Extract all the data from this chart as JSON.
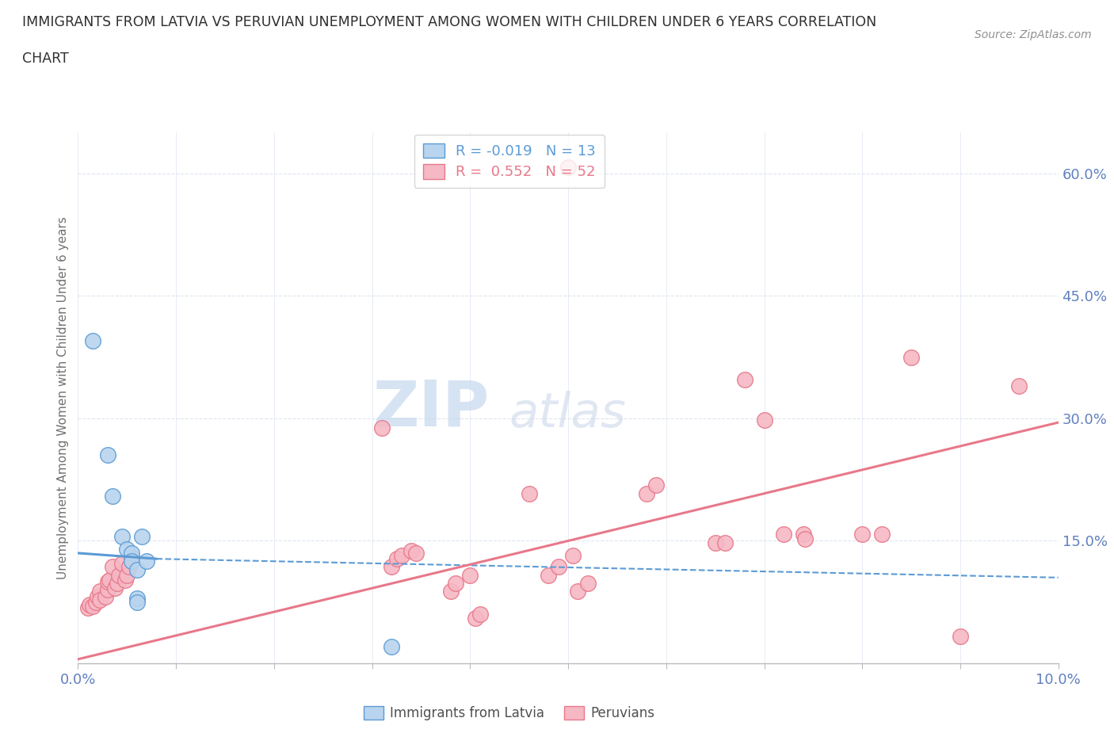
{
  "title_line1": "IMMIGRANTS FROM LATVIA VS PERUVIAN UNEMPLOYMENT AMONG WOMEN WITH CHILDREN UNDER 6 YEARS CORRELATION",
  "title_line2": "CHART",
  "source": "Source: ZipAtlas.com",
  "ylabel": "Unemployment Among Women with Children Under 6 years",
  "xlim": [
    0.0,
    0.1
  ],
  "ylim": [
    0.0,
    0.65
  ],
  "yticks_right": [
    0.0,
    0.15,
    0.3,
    0.45,
    0.6
  ],
  "yticklabels_right": [
    "",
    "15.0%",
    "30.0%",
    "45.0%",
    "60.0%"
  ],
  "legend_r_latvia": "R = -0.019",
  "legend_n_latvia": "N = 13",
  "legend_r_peru": "R =  0.552",
  "legend_n_peru": "N = 52",
  "watermark_zip": "ZIP",
  "watermark_atlas": "atlas",
  "background_color": "#ffffff",
  "grid_color": "#dde5f0",
  "blue_color": "#5b9bd5",
  "pink_color": "#e8788a",
  "blue_fill": "#b8d4ee",
  "pink_fill": "#f5b8c4",
  "tick_color": "#6080c0",
  "source_color": "#909090",
  "latvia_points": [
    [
      0.0015,
      0.395
    ],
    [
      0.003,
      0.255
    ],
    [
      0.0035,
      0.205
    ],
    [
      0.0045,
      0.155
    ],
    [
      0.005,
      0.14
    ],
    [
      0.0055,
      0.135
    ],
    [
      0.0055,
      0.125
    ],
    [
      0.006,
      0.115
    ],
    [
      0.006,
      0.08
    ],
    [
      0.006,
      0.075
    ],
    [
      0.0065,
      0.155
    ],
    [
      0.007,
      0.125
    ],
    [
      0.032,
      0.02
    ]
  ],
  "peruvian_points": [
    [
      0.001,
      0.068
    ],
    [
      0.0012,
      0.072
    ],
    [
      0.0015,
      0.07
    ],
    [
      0.0018,
      0.075
    ],
    [
      0.002,
      0.082
    ],
    [
      0.0022,
      0.088
    ],
    [
      0.0022,
      0.078
    ],
    [
      0.0028,
      0.082
    ],
    [
      0.003,
      0.09
    ],
    [
      0.003,
      0.1
    ],
    [
      0.0032,
      0.102
    ],
    [
      0.0035,
      0.118
    ],
    [
      0.0038,
      0.092
    ],
    [
      0.004,
      0.098
    ],
    [
      0.0042,
      0.108
    ],
    [
      0.0045,
      0.122
    ],
    [
      0.0048,
      0.102
    ],
    [
      0.005,
      0.108
    ],
    [
      0.0052,
      0.118
    ],
    [
      0.0055,
      0.13
    ],
    [
      0.031,
      0.288
    ],
    [
      0.032,
      0.118
    ],
    [
      0.0325,
      0.128
    ],
    [
      0.033,
      0.132
    ],
    [
      0.034,
      0.138
    ],
    [
      0.0345,
      0.135
    ],
    [
      0.038,
      0.088
    ],
    [
      0.0385,
      0.098
    ],
    [
      0.04,
      0.108
    ],
    [
      0.0405,
      0.055
    ],
    [
      0.041,
      0.06
    ],
    [
      0.046,
      0.208
    ],
    [
      0.048,
      0.108
    ],
    [
      0.049,
      0.118
    ],
    [
      0.05,
      0.608
    ],
    [
      0.0505,
      0.132
    ],
    [
      0.051,
      0.088
    ],
    [
      0.052,
      0.098
    ],
    [
      0.058,
      0.208
    ],
    [
      0.059,
      0.218
    ],
    [
      0.065,
      0.148
    ],
    [
      0.066,
      0.148
    ],
    [
      0.068,
      0.348
    ],
    [
      0.07,
      0.298
    ],
    [
      0.072,
      0.158
    ],
    [
      0.074,
      0.158
    ],
    [
      0.0742,
      0.152
    ],
    [
      0.08,
      0.158
    ],
    [
      0.082,
      0.158
    ],
    [
      0.085,
      0.375
    ],
    [
      0.09,
      0.033
    ],
    [
      0.096,
      0.34
    ]
  ],
  "latvia_trend_x": [
    0.0,
    0.1
  ],
  "latvia_trend_y": [
    0.135,
    0.108
  ],
  "peru_trend_x": [
    0.0,
    0.1
  ],
  "peru_trend_y": [
    0.01,
    0.295
  ]
}
